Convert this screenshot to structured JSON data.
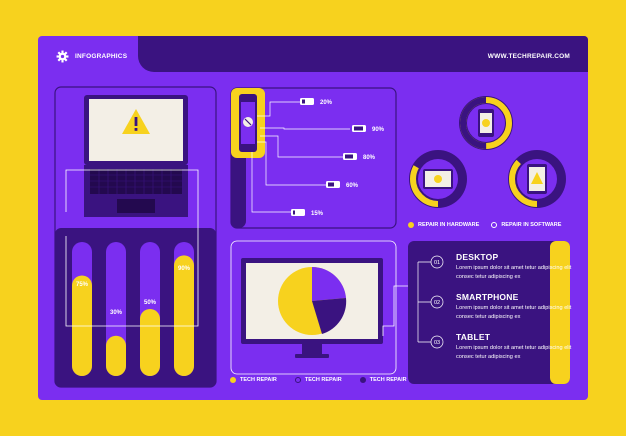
{
  "header": {
    "brand": "INFOGRAPHICS",
    "site": "WWW.TECHREPAIR.COM"
  },
  "colors": {
    "background": "#f7d21e",
    "card": "#7b2ef0",
    "dark": "#3a1380",
    "accent": "#f7d21e"
  },
  "battery_callouts": [
    "20%",
    "90%",
    "80%",
    "60%",
    "15%"
  ],
  "bar_labels": [
    "75%",
    "30%",
    "50%",
    "90%"
  ],
  "bar_fills": [
    0.75,
    0.3,
    0.5,
    0.9
  ],
  "legend_repair": {
    "hardware": "REPAIR IN HARDWARE",
    "software": "REPAIR IN SOFTWARE"
  },
  "pie_legend": [
    "TECH REPAIR",
    "TECH REPAIR",
    "TECH REPAIR"
  ],
  "list": [
    {
      "num": "01",
      "title": "DESKTOP",
      "desc": "Lorem ipsum dolor sit amet tetur adipiscing elit consec tetur adipiscing ex"
    },
    {
      "num": "02",
      "title": "SMARTPHONE",
      "desc": "Lorem ipsum dolor sit amet tetur adipiscing elit consec tetur adipiscing ex"
    },
    {
      "num": "03",
      "title": "TABLET",
      "desc": "Lorem ipsum dolor sit amet tetur adipiscing elit consec tetur adipiscing ex"
    }
  ],
  "icons": [
    "gear-icon",
    "warning-icon",
    "phone-icon",
    "tablet-icon",
    "laptop-icon",
    "monitor-icon",
    "keyboard-icon"
  ]
}
